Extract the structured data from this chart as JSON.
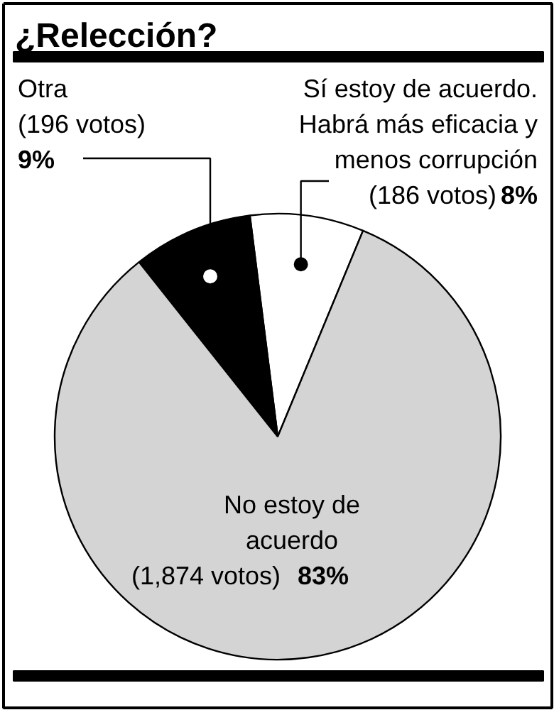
{
  "chart_data": {
    "type": "pie",
    "title": "¿Relección?",
    "categories": [
      "Sí estoy de acuerdo.\nHabrá más eficacia y\nmenos corrupción",
      "Otra",
      "No estoy de\nacuerdo"
    ],
    "values": [
      186,
      196,
      1874
    ],
    "colors": [
      "#ffffff",
      "#000000",
      "#d4d4d4"
    ],
    "value_labels": [
      "(186 votos) 8%",
      "(196 votos) 9%",
      "(1,874 votos) 83%"
    ]
  }
}
